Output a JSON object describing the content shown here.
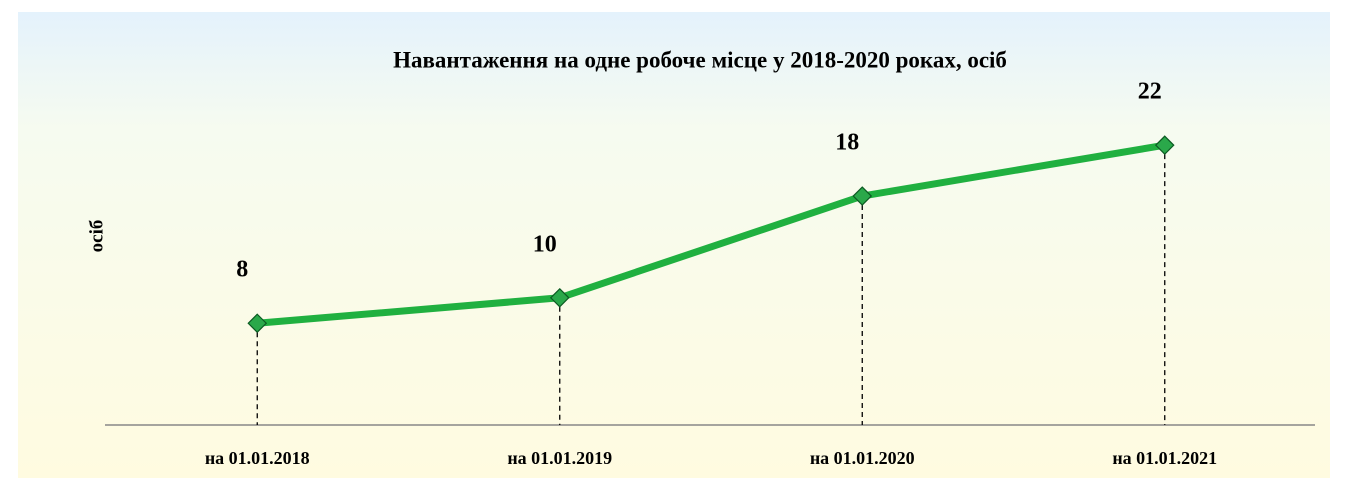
{
  "chart_data": {
    "type": "line",
    "title": "Навантаження на одне робоче місце у 2018-2020 роках, осіб",
    "ylabel": "осіб",
    "categories": [
      "на 01.01.2018",
      "на 01.01.2019",
      "на 01.01.2020",
      "на 01.01.2021"
    ],
    "values": [
      8,
      10,
      18,
      22
    ],
    "color": "#20b040",
    "ylim": [
      0,
      25
    ],
    "drop_lines": true
  }
}
